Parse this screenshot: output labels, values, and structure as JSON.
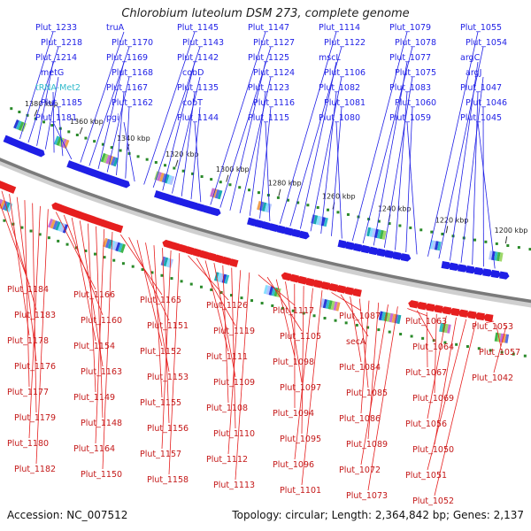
{
  "title": "Chlorobium luteolum DSM 273, complete genome",
  "footer": {
    "accession": "Accession: NC_007512",
    "summary": "Topology: circular; Length: 2,364,842 bp; Genes: 2,137"
  },
  "colors": {
    "forward": "#1f1fe6",
    "reverse": "#e61f1f",
    "rna": "#33bbcc",
    "backbone": "#8a8a8a",
    "tick": "#2a8a2a"
  },
  "kbp_ticks": [
    "1380 kbp",
    "1360 kbp",
    "1340 kbp",
    "1320 kbp",
    "1300 kbp",
    "1280 kbp",
    "1260 kbp",
    "1240 kbp",
    "1220 kbp",
    "1200 kbp"
  ],
  "forward_labels": [
    "Plut_1233",
    "Plut_1218",
    "Plut_1214",
    "metG",
    "tRNA-Met2",
    "Plut_1185",
    "Plut_1181",
    "truA",
    "Plut_1170",
    "Plut_1169",
    "Plut_1168",
    "Plut_1167",
    "Plut_1162",
    "pgi",
    "Plut_1145",
    "Plut_1143",
    "Plut_1142",
    "cobD",
    "Plut_1135",
    "cobT",
    "Plut_1144",
    "Plut_1147",
    "Plut_1127",
    "Plut_1125",
    "Plut_1124",
    "Plut_1123",
    "Plut_1116",
    "Plut_1115",
    "Plut_1114",
    "Plut_1122",
    "mscL",
    "Plut_1106",
    "Plut_1082",
    "Plut_1081",
    "Plut_1080",
    "Plut_1079",
    "Plut_1078",
    "Plut_1077",
    "Plut_1075",
    "Plut_1083",
    "Plut_1060",
    "Plut_1059",
    "Plut_1055",
    "Plut_1054",
    "argC",
    "argJ",
    "Plut_1047",
    "Plut_1046",
    "Plut_1045"
  ],
  "reverse_labels": [
    "Plut_1184",
    "Plut_1183",
    "Plut_1178",
    "Plut_1176",
    "Plut_1177",
    "Plut_1179",
    "Plut_1180",
    "Plut_1182",
    "Plut_1166",
    "Plut_1160",
    "Plut_1154",
    "Plut_1163",
    "Plut_1149",
    "Plut_1148",
    "Plut_1164",
    "Plut_1150",
    "Plut_1165",
    "Plut_1151",
    "Plut_1152",
    "Plut_1153",
    "Plut_1155",
    "Plut_1156",
    "Plut_1157",
    "Plut_1158",
    "Plut_1126",
    "Plut_1119",
    "Plut_1111",
    "Plut_1109",
    "Plut_1108",
    "Plut_1110",
    "Plut_1112",
    "Plut_1113",
    "Plut_1117",
    "Plut_1105",
    "Plut_1098",
    "Plut_1097",
    "Plut_1094",
    "Plut_1095",
    "Plut_1096",
    "Plut_1101",
    "Plut_1087",
    "secA",
    "Plut_1084",
    "Plut_1085",
    "Plut_1086",
    "Plut_1089",
    "Plut_1072",
    "Plut_1073",
    "Plut_1063",
    "Plut_1064",
    "Plut_1067",
    "Plut_1069",
    "Plut_1056",
    "Plut_1050",
    "Plut_1051",
    "Plut_1052",
    "Plut_1053",
    "Plut_1057",
    "Plut_1042"
  ]
}
